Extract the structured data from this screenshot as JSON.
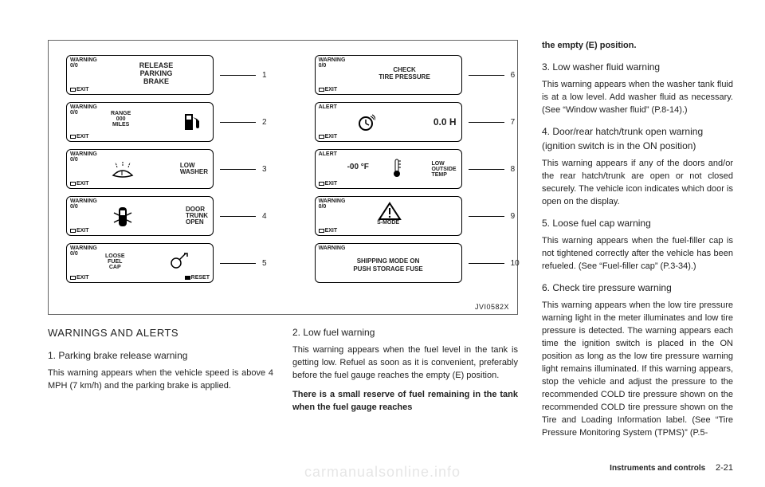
{
  "figure": {
    "id": "JVI0582X",
    "panel_common": {
      "warning_top": "WARNING\n0/0",
      "alert_top": "ALERT",
      "warning_only_top": "WARNING",
      "exit": "EXIT",
      "reset": "RESET"
    },
    "left_panels": [
      {
        "num": "1",
        "top": "warning",
        "main": "RELEASE\nPARKING\nBRAKE"
      },
      {
        "num": "2",
        "top": "warning",
        "icon": "fuel",
        "main_left": "RANGE\n000\nMILES"
      },
      {
        "num": "3",
        "top": "warning",
        "icon": "washer",
        "right": "LOW\nWASHER"
      },
      {
        "num": "4",
        "top": "warning",
        "icon": "car",
        "right": "DOOR\nTRUNK\nOPEN"
      },
      {
        "num": "5",
        "top": "warning",
        "icon": "cap",
        "main_left": "LOOSE\nFUEL\nCAP",
        "reset": true
      }
    ],
    "right_panels": [
      {
        "num": "6",
        "top": "warning",
        "main": "CHECK\nTIRE PRESSURE"
      },
      {
        "num": "7",
        "top": "alert",
        "icon": "clock",
        "right_big": "0.0 H"
      },
      {
        "num": "8",
        "top": "alert",
        "left_big": "-00 °F",
        "icon": "therm",
        "right": "LOW\nOUTSIDE\nTEMP"
      },
      {
        "num": "9",
        "top": "warning",
        "icon": "tri",
        "under": "S-MODE"
      },
      {
        "num": "10",
        "top": "warning_only",
        "full": "SHIPPING MODE ON\nPUSH STORAGE FUSE"
      }
    ]
  },
  "left_text": {
    "heading": "WARNINGS AND ALERTS",
    "item1_title": "1. Parking brake release warning",
    "item1_body": "This warning appears when the vehicle speed is above 4 MPH (7 km/h) and the parking brake is applied.",
    "item2_title": "2. Low fuel warning",
    "item2_body": "This warning appears when the fuel level in the tank is getting low. Refuel as soon as it is convenient, preferably before the fuel gauge reaches the empty (E) position.",
    "item2_bold": "There is a small reserve of fuel remaining in the tank when the fuel gauge reaches"
  },
  "right_text": {
    "cont": "the empty (E) position.",
    "item3_title": "3. Low washer fluid warning",
    "item3_body": "This warning appears when the washer tank fluid is at a low level. Add washer fluid as necessary. (See “Window washer fluid” (P.8-14).)",
    "item4_title": "4. Door/rear hatch/trunk open warning (ignition switch is in the ON position)",
    "item4_body": "This warning appears if any of the doors and/or the rear hatch/trunk are open or not closed securely. The vehicle icon indicates which door is open on the display.",
    "item5_title": "5. Loose fuel cap warning",
    "item5_body": "This warning appears when the fuel-filler cap is not tightened correctly after the vehicle has been refueled. (See “Fuel-filler cap” (P.3-34).)",
    "item6_title": "6. Check tire pressure warning",
    "item6_body": "This warning appears when the low tire pressure warning light in the meter illuminates and low tire pressure is detected. The warning appears each time the ignition switch is placed in the ON position as long as the low tire pressure warning light remains illuminated. If this warning appears, stop the vehicle and adjust the pressure to the recommended COLD tire pressure shown on the recommended COLD tire pressure shown on the Tire and Loading Information label. (See “Tire Pressure Monitoring System (TPMS)” (P.5-"
  },
  "footer": {
    "section": "Instruments and controls",
    "page": "2-21"
  },
  "watermark": "carmanualsonline.info"
}
